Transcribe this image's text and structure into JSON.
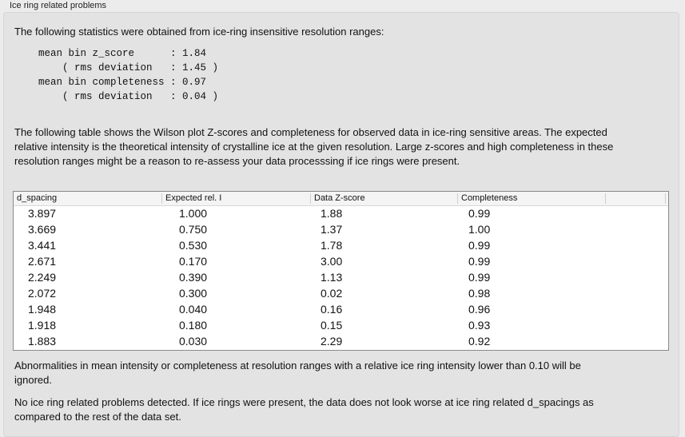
{
  "group_title": "Ice ring related problems",
  "intro": "The following statistics were obtained from ice-ring insensitive resolution ranges:",
  "stats": "mean bin z_score      : 1.84\n    ( rms deviation   : 1.45 )\nmean bin completeness : 0.97\n    ( rms deviation   : 0.04 )",
  "table_intro": "The following table shows the Wilson plot Z-scores and completeness for observed data in ice-ring sensitive areas. The expected relative intensity is the theoretical intensity of crystalline ice at the given resolution. Large z-scores and high completeness in these resolution ranges might be a reason to re-assess your data processsing if ice rings were present.",
  "table": {
    "columns": [
      "d_spacing",
      "Expected rel. I",
      "Data Z-score",
      "Completeness",
      ""
    ],
    "rows": [
      [
        "3.897",
        "1.000",
        "1.88",
        "0.99"
      ],
      [
        "3.669",
        "0.750",
        "1.37",
        "1.00"
      ],
      [
        "3.441",
        "0.530",
        "1.78",
        "0.99"
      ],
      [
        "2.671",
        "0.170",
        "3.00",
        "0.99"
      ],
      [
        "2.249",
        "0.390",
        "1.13",
        "0.99"
      ],
      [
        "2.072",
        "0.300",
        "0.02",
        "0.98"
      ],
      [
        "1.948",
        "0.040",
        "0.16",
        "0.96"
      ],
      [
        "1.918",
        "0.180",
        "0.15",
        "0.93"
      ],
      [
        "1.883",
        "0.030",
        "2.29",
        "0.92"
      ]
    ]
  },
  "note": "Abnormalities in mean intensity or completeness at resolution ranges with a relative ice ring intensity lower than 0.10 will be ignored.",
  "conclusion": "No ice ring related problems detected. If ice rings were present, the data does not look worse at ice ring related d_spacings as compared to the rest of the data set."
}
